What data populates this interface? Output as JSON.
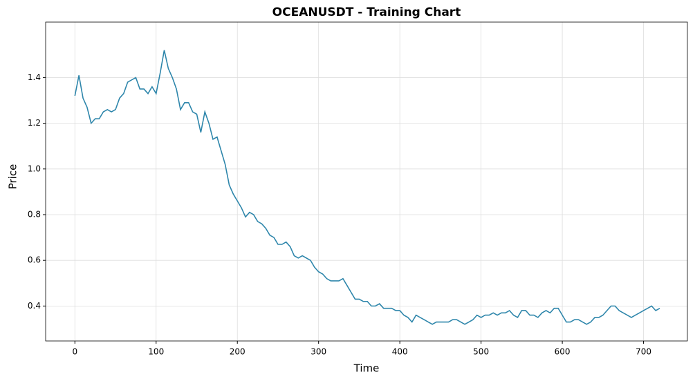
{
  "chart_data": {
    "type": "line",
    "title": "OCEANUSDT - Training Chart",
    "x_label": "Time",
    "y_label": "Price",
    "x": [
      0,
      5,
      10,
      15,
      20,
      25,
      30,
      35,
      40,
      45,
      50,
      55,
      60,
      65,
      70,
      75,
      80,
      85,
      90,
      95,
      100,
      105,
      110,
      115,
      120,
      125,
      130,
      135,
      140,
      145,
      150,
      155,
      160,
      165,
      170,
      175,
      180,
      185,
      190,
      195,
      200,
      205,
      210,
      215,
      220,
      225,
      230,
      235,
      240,
      245,
      250,
      255,
      260,
      265,
      270,
      275,
      280,
      285,
      290,
      295,
      300,
      305,
      310,
      315,
      320,
      325,
      330,
      335,
      340,
      345,
      350,
      355,
      360,
      365,
      370,
      375,
      380,
      385,
      390,
      395,
      400,
      405,
      410,
      415,
      420,
      425,
      430,
      435,
      440,
      445,
      450,
      455,
      460,
      465,
      470,
      475,
      480,
      485,
      490,
      495,
      500,
      505,
      510,
      515,
      520,
      525,
      530,
      535,
      540,
      545,
      550,
      555,
      560,
      565,
      570,
      575,
      580,
      585,
      590,
      595,
      600,
      605,
      610,
      615,
      620,
      625,
      630,
      635,
      640,
      645,
      650,
      655,
      660,
      665,
      670,
      675,
      680,
      685,
      690,
      695,
      700,
      705,
      710,
      715,
      720
    ],
    "values": [
      1.32,
      1.41,
      1.31,
      1.27,
      1.2,
      1.22,
      1.22,
      1.25,
      1.26,
      1.25,
      1.26,
      1.31,
      1.33,
      1.38,
      1.39,
      1.4,
      1.35,
      1.35,
      1.33,
      1.36,
      1.33,
      1.42,
      1.52,
      1.44,
      1.4,
      1.35,
      1.26,
      1.29,
      1.29,
      1.25,
      1.24,
      1.16,
      1.25,
      1.2,
      1.13,
      1.14,
      1.08,
      1.02,
      0.93,
      0.89,
      0.86,
      0.83,
      0.79,
      0.81,
      0.8,
      0.77,
      0.76,
      0.74,
      0.71,
      0.7,
      0.67,
      0.67,
      0.68,
      0.66,
      0.62,
      0.61,
      0.62,
      0.61,
      0.6,
      0.57,
      0.55,
      0.54,
      0.52,
      0.51,
      0.51,
      0.51,
      0.52,
      0.49,
      0.46,
      0.43,
      0.43,
      0.42,
      0.42,
      0.4,
      0.4,
      0.41,
      0.39,
      0.39,
      0.39,
      0.38,
      0.38,
      0.36,
      0.35,
      0.33,
      0.36,
      0.35,
      0.34,
      0.33,
      0.32,
      0.33,
      0.33,
      0.33,
      0.33,
      0.34,
      0.34,
      0.33,
      0.32,
      0.33,
      0.34,
      0.36,
      0.35,
      0.36,
      0.36,
      0.37,
      0.36,
      0.37,
      0.37,
      0.38,
      0.36,
      0.35,
      0.38,
      0.38,
      0.36,
      0.36,
      0.35,
      0.37,
      0.38,
      0.37,
      0.39,
      0.39,
      0.36,
      0.33,
      0.33,
      0.34,
      0.34,
      0.33,
      0.32,
      0.33,
      0.35,
      0.35,
      0.36,
      0.38,
      0.4,
      0.4,
      0.38,
      0.37,
      0.36,
      0.35,
      0.36,
      0.37,
      0.38,
      0.39,
      0.4,
      0.38,
      0.39
    ],
    "color": "#2e86ab",
    "xlim": [
      -36,
      754
    ],
    "xticks": [
      0,
      100,
      200,
      300,
      400,
      500,
      600,
      700
    ],
    "ylim": [
      0.247,
      1.643
    ],
    "yticks": [
      0.4,
      0.6,
      0.8,
      {
        "value": 1,
        "label": "1.0"
      },
      1.2,
      1.4
    ],
    "grid": true
  }
}
